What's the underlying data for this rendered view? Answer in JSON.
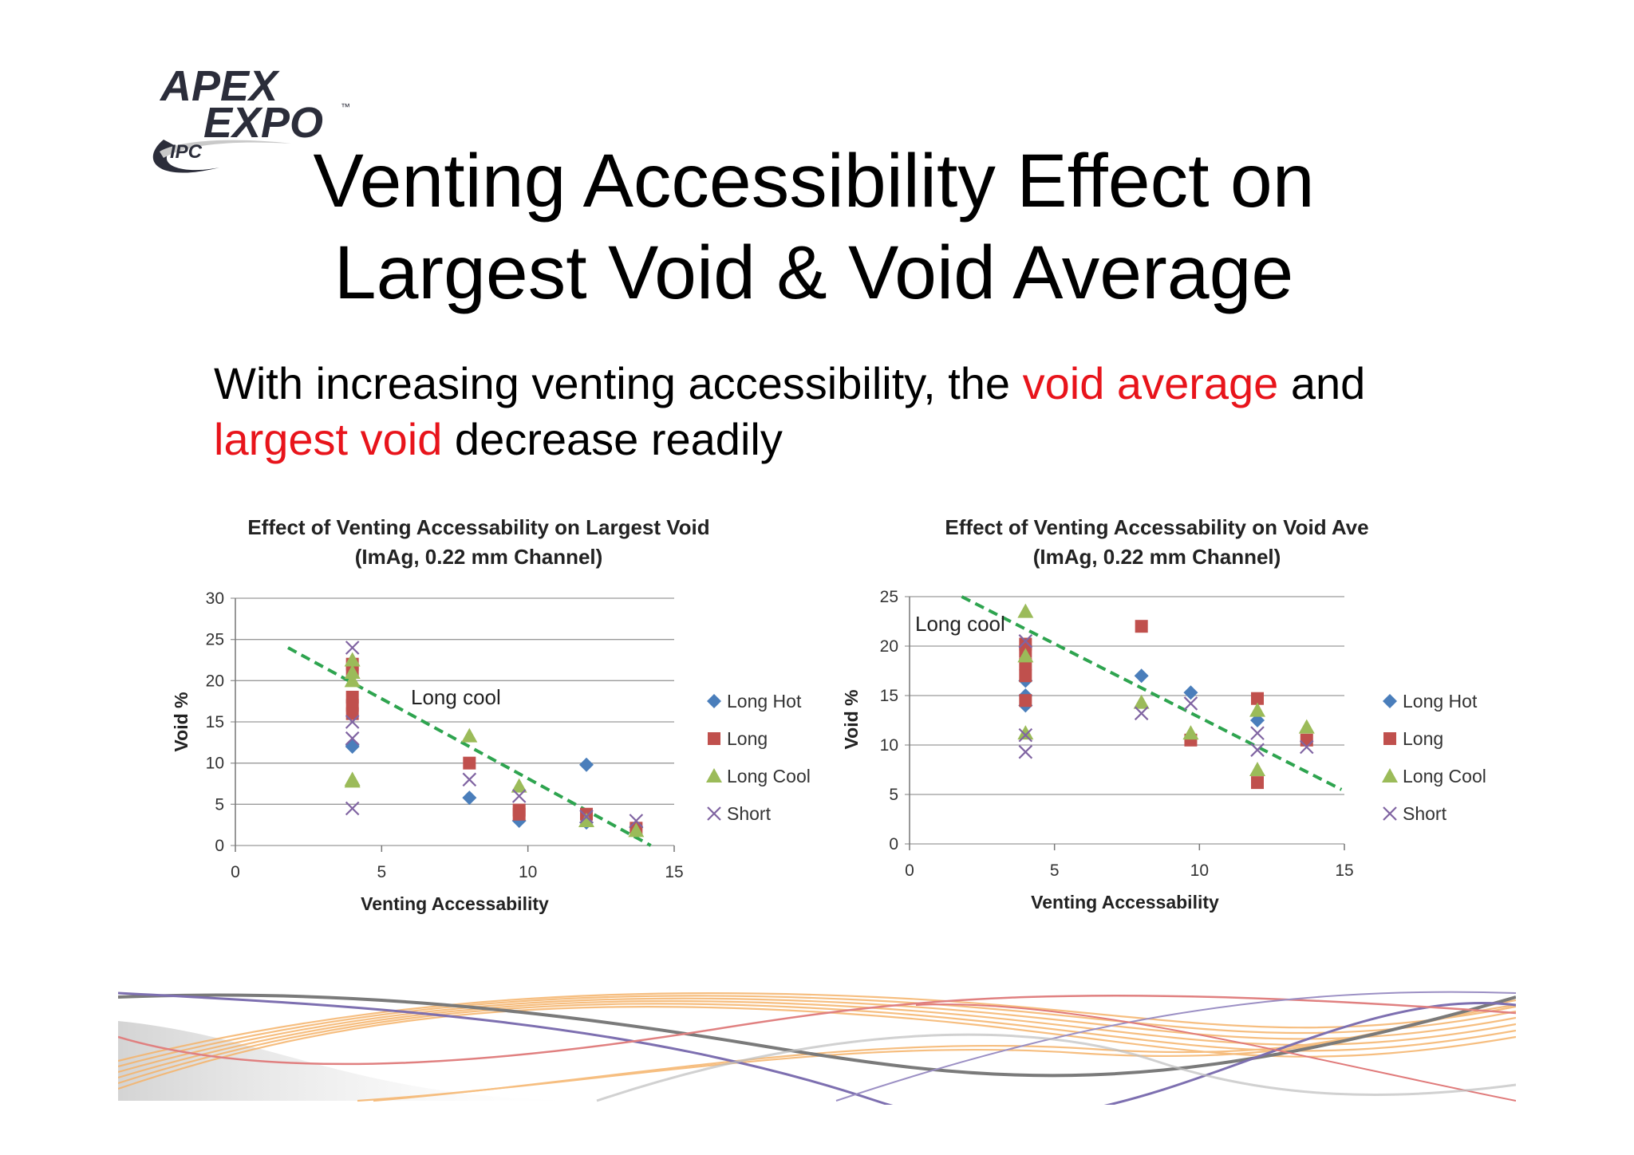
{
  "logo": {
    "line1": "APEX",
    "line2": "EXPO",
    "tm": "™",
    "org": "IPC"
  },
  "slide": {
    "title_line1": "Venting Accessibility Effect on",
    "title_line2": "Largest Void & Void Average",
    "subtitle": {
      "part1": "With increasing venting accessibility, the ",
      "highlight1": "void average",
      "part2": " and",
      "highlight2": "largest void",
      "part3": " decrease readily"
    },
    "highlight_color": "#e8141b"
  },
  "chart_data": [
    {
      "type": "scatter",
      "title": "Effect of Venting Accessability on Largest Void",
      "subtitle": "(ImAg, 0.22 mm Channel)",
      "xlabel": "Venting Accessability",
      "ylabel": "Void %",
      "xlim": [
        0,
        15
      ],
      "ylim": [
        0,
        30
      ],
      "xticks": [
        0,
        5,
        10,
        15
      ],
      "yticks": [
        0,
        5,
        10,
        15,
        20,
        25,
        30
      ],
      "grid": "horizontal",
      "legend": "right",
      "series": [
        {
          "name": "Long Hot",
          "marker": "diamond",
          "color": "#4a7ebb",
          "points": [
            [
              4,
              12
            ],
            [
              4,
              12.2
            ],
            [
              8,
              5.8
            ],
            [
              9.7,
              3
            ],
            [
              12,
              9.8
            ],
            [
              12,
              2.8
            ],
            [
              13.7,
              2.2
            ]
          ]
        },
        {
          "name": "Long",
          "marker": "square",
          "color": "#c0504d",
          "points": [
            [
              4,
              22
            ],
            [
              4,
              21.3
            ],
            [
              4,
              18
            ],
            [
              4,
              17
            ],
            [
              4,
              16
            ],
            [
              8,
              10
            ],
            [
              9.7,
              4.3
            ],
            [
              9.7,
              3.8
            ],
            [
              12,
              3.8
            ],
            [
              13.7,
              2.1
            ]
          ]
        },
        {
          "name": "Long Cool",
          "marker": "triangle",
          "color": "#9bbb59",
          "points": [
            [
              4,
              22.5
            ],
            [
              4,
              21
            ],
            [
              4,
              20
            ],
            [
              4,
              8
            ],
            [
              4,
              7.8
            ],
            [
              8,
              13.3
            ],
            [
              9.7,
              7.2
            ],
            [
              12,
              3
            ],
            [
              13.7,
              1.8
            ]
          ]
        },
        {
          "name": "Short",
          "marker": "x",
          "color": "#8064a2",
          "points": [
            [
              4,
              24
            ],
            [
              4,
              15
            ],
            [
              4,
              13
            ],
            [
              4,
              4.5
            ],
            [
              8,
              8
            ],
            [
              9.7,
              6
            ],
            [
              12,
              3.5
            ],
            [
              13.7,
              3
            ]
          ]
        }
      ],
      "trendline": {
        "label": "Long cool",
        "color": "#2ea44f",
        "from": [
          1.8,
          24
        ],
        "to": [
          14.2,
          0
        ]
      }
    },
    {
      "type": "scatter",
      "title": "Effect of Venting Accessability on Void Ave",
      "subtitle": "(ImAg, 0.22 mm Channel)",
      "xlabel": "Venting Accessability",
      "ylabel": "Void %",
      "xlim": [
        0,
        15
      ],
      "ylim": [
        0,
        25
      ],
      "xticks": [
        0,
        5,
        10,
        15
      ],
      "yticks": [
        0,
        5,
        10,
        15,
        20,
        25
      ],
      "grid": "horizontal",
      "legend": "right",
      "series": [
        {
          "name": "Long Hot",
          "marker": "diamond",
          "color": "#4a7ebb",
          "points": [
            [
              4,
              16.5
            ],
            [
              4,
              15
            ],
            [
              4,
              14
            ],
            [
              8,
              17
            ],
            [
              9.7,
              15.3
            ],
            [
              12,
              12.5
            ]
          ]
        },
        {
          "name": "Long",
          "marker": "square",
          "color": "#c0504d",
          "points": [
            [
              4,
              20.2
            ],
            [
              4,
              19.5
            ],
            [
              4,
              18.2
            ],
            [
              4,
              17
            ],
            [
              4,
              14.5
            ],
            [
              8,
              22
            ],
            [
              9.7,
              10.5
            ],
            [
              12,
              14.7
            ],
            [
              12,
              6.2
            ],
            [
              13.7,
              10.5
            ]
          ]
        },
        {
          "name": "Long Cool",
          "marker": "triangle",
          "color": "#9bbb59",
          "points": [
            [
              4,
              23.5
            ],
            [
              4,
              19
            ],
            [
              4,
              11.2
            ],
            [
              8,
              14.3
            ],
            [
              9.7,
              11.2
            ],
            [
              12,
              13.5
            ],
            [
              12,
              7.5
            ],
            [
              13.7,
              11.8
            ]
          ]
        },
        {
          "name": "Short",
          "marker": "x",
          "color": "#8064a2",
          "points": [
            [
              4,
              20.5
            ],
            [
              4,
              11
            ],
            [
              4,
              9.3
            ],
            [
              8,
              13.2
            ],
            [
              9.7,
              14.2
            ],
            [
              12,
              11.2
            ],
            [
              12,
              9.5
            ],
            [
              13.7,
              9.8
            ]
          ]
        }
      ],
      "trendline": {
        "label": "Long cool",
        "color": "#2ea44f",
        "from": [
          1.8,
          25
        ],
        "to": [
          14.9,
          5.5
        ]
      }
    }
  ]
}
